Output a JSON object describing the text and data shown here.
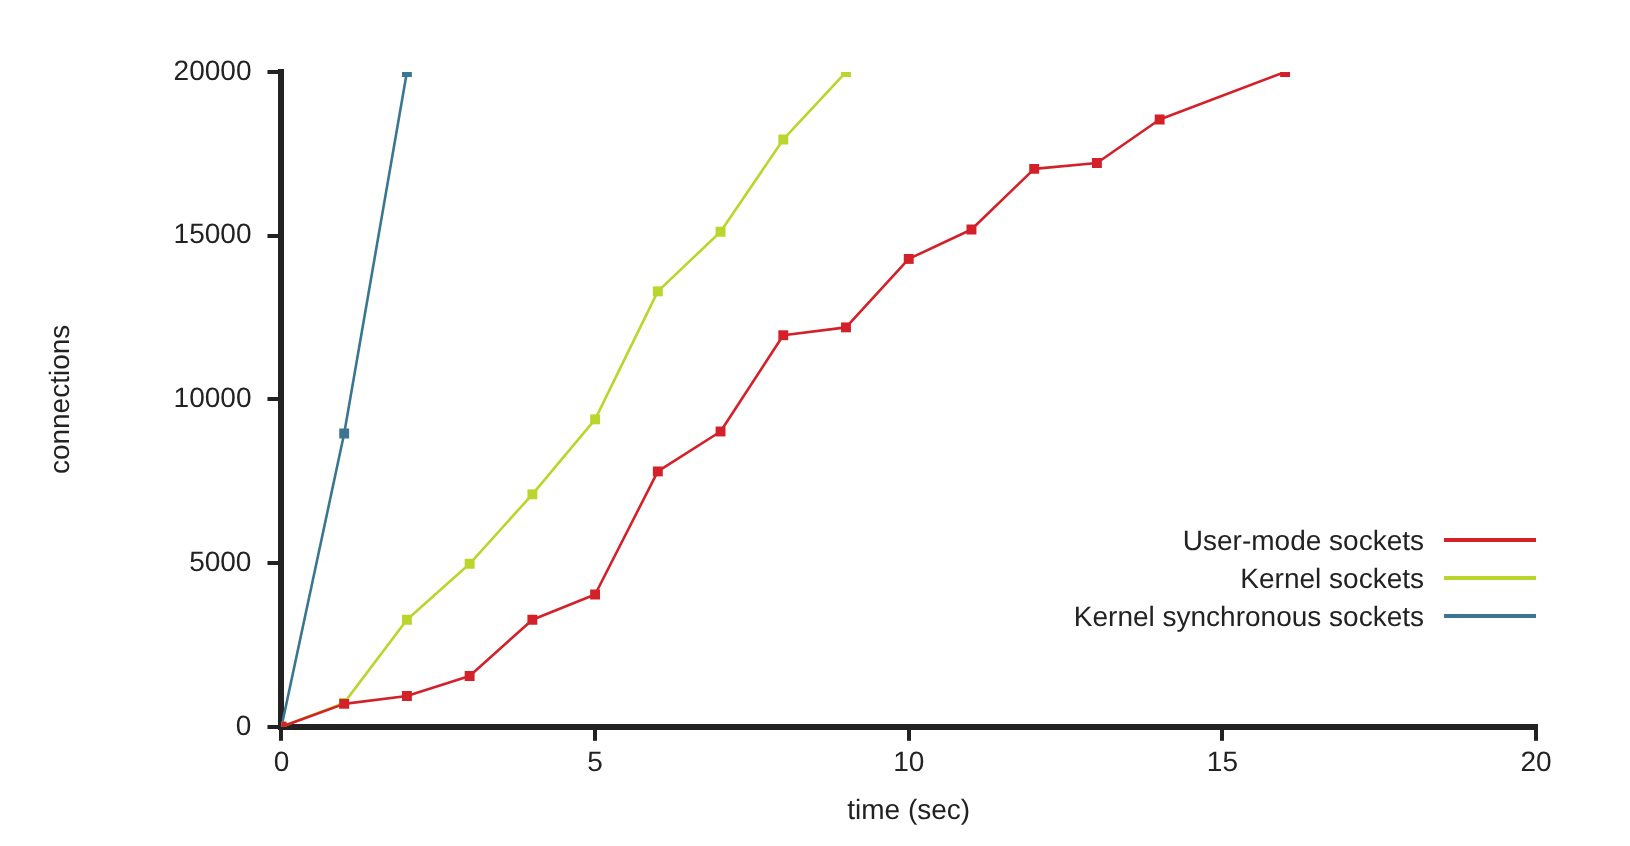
{
  "chart_data": {
    "type": "line",
    "xlabel": "time (sec)",
    "ylabel": "connections",
    "xlim": [
      0,
      20
    ],
    "xticks": [
      0,
      5,
      10,
      15,
      20
    ],
    "ylim": [
      0,
      20000
    ],
    "yticks": [
      0,
      5000,
      10000,
      15000,
      20000
    ],
    "grid": false,
    "legend": "right",
    "marker": "square",
    "line_style": "solid",
    "series": [
      {
        "name": "User-mode sockets",
        "color": "#d42028",
        "x": [
          0,
          1,
          2,
          3,
          4,
          5,
          6,
          7,
          8,
          9,
          10,
          11,
          12,
          13,
          14,
          16
        ],
        "values": [
          0,
          700,
          940,
          1550,
          3270,
          4040,
          7800,
          9020,
          11960,
          12200,
          14290,
          15190,
          17040,
          17220,
          18550,
          20000
        ]
      },
      {
        "name": "Kernel sockets",
        "color": "#bcd52c",
        "x": [
          0,
          1,
          2,
          3,
          4,
          5,
          6,
          7,
          8,
          9
        ],
        "values": [
          0,
          730,
          3270,
          4980,
          7100,
          9390,
          13300,
          15120,
          17940,
          20000
        ]
      },
      {
        "name": "Kernel synchronous sockets",
        "color": "#3a7691",
        "x": [
          0,
          1,
          2
        ],
        "values": [
          0,
          8960,
          20000
        ]
      }
    ]
  }
}
